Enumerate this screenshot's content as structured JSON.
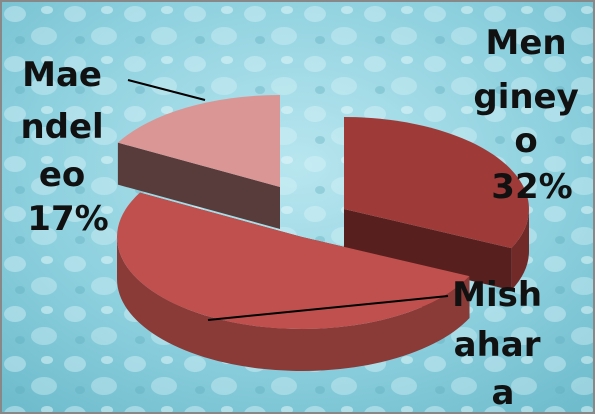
{
  "chart_data": {
    "type": "pie",
    "style": "3d-exploded",
    "slices": [
      {
        "label_lines": [
          "Men",
          "giney",
          "o"
        ],
        "percent_text": "32%",
        "value": 32,
        "color": "#9e3b38"
      },
      {
        "label_lines": [
          "Mish",
          "ahar",
          "a"
        ],
        "percent_text": "",
        "value": 51,
        "color": "#c0504d"
      },
      {
        "label_lines": [
          "Mae",
          "ndel",
          "eo"
        ],
        "percent_text": "17%",
        "value": 17,
        "color": "#d99694"
      }
    ]
  },
  "background": {
    "description_color": "#7fc9d9",
    "border_color": "#888888"
  }
}
